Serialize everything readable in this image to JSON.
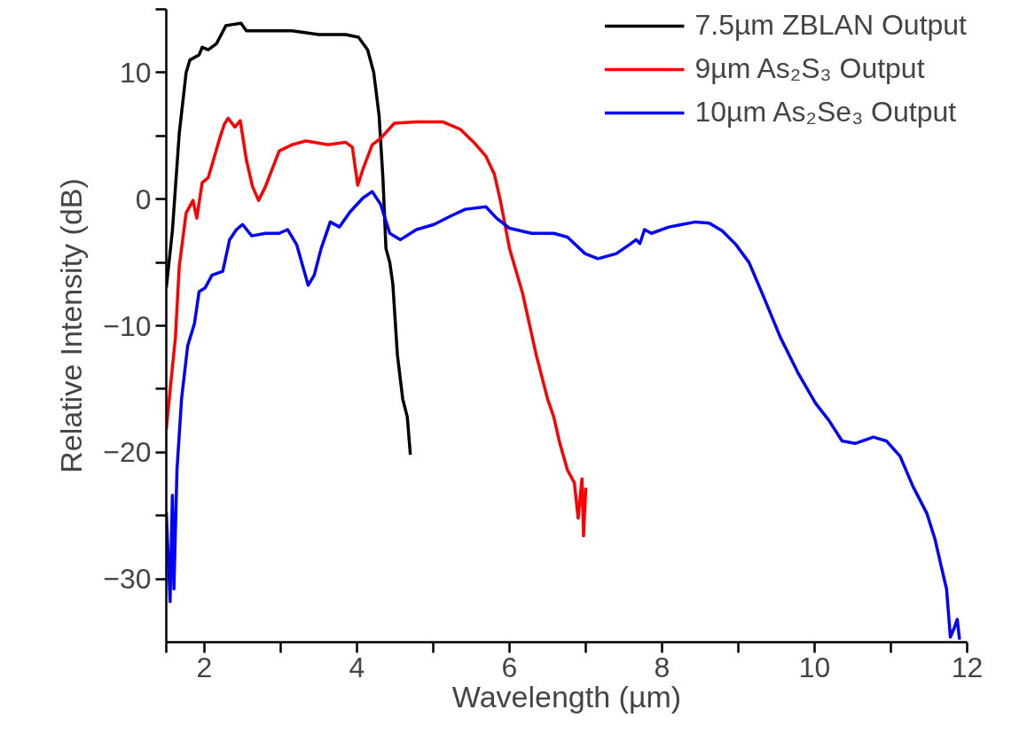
{
  "chart_data": {
    "type": "line",
    "xlabel": "Wavelength (µm)",
    "ylabel": "Relative Intensity (dB)",
    "xlim": [
      1.5,
      12
    ],
    "ylim": [
      -35,
      15
    ],
    "xticks": [
      {
        "value": 1.5,
        "label": null
      },
      2,
      {
        "value": 3,
        "label": null
      },
      4,
      {
        "value": 5,
        "label": null
      },
      6,
      {
        "value": 7,
        "label": null
      },
      8,
      {
        "value": 9,
        "label": null
      },
      10,
      {
        "value": 11,
        "label": null
      },
      12
    ],
    "yticks": [
      -30,
      {
        "value": -25,
        "label": null
      },
      -20,
      {
        "value": -15,
        "label": null
      },
      -10,
      {
        "value": -5,
        "label": null
      },
      0,
      {
        "value": 5,
        "label": null
      },
      10,
      {
        "value": 15,
        "label": null
      }
    ],
    "grid": false,
    "legend": "top right",
    "line_style": "solid",
    "marker": "none",
    "series": [
      {
        "name": "7.5µm ZBLAN Output",
        "color": "#000000",
        "x": [
          1.5,
          1.58,
          1.67,
          1.76,
          1.81,
          1.93,
          1.97,
          2.05,
          2.16,
          2.28,
          2.37,
          2.48,
          2.55,
          2.63,
          2.8,
          3.15,
          3.5,
          3.85,
          4.02,
          4.14,
          4.22,
          4.29,
          4.34,
          4.38,
          4.43,
          4.47,
          4.53,
          4.6,
          4.66,
          4.7
        ],
        "values": [
          -7.0,
          -2.5,
          5.2,
          10.0,
          11.0,
          11.4,
          12.0,
          11.8,
          12.3,
          13.7,
          13.8,
          13.9,
          13.3,
          13.3,
          13.3,
          13.3,
          13.0,
          13.0,
          12.8,
          11.8,
          10.0,
          6.6,
          1.7,
          -3.9,
          -5.0,
          -6.7,
          -12.3,
          -15.8,
          -17.2,
          -20.2
        ]
      },
      {
        "name": "9µm As₂S₃ Output",
        "color": "#ff0000",
        "x": [
          1.5,
          1.55,
          1.62,
          1.67,
          1.76,
          1.85,
          1.9,
          1.97,
          2.05,
          2.2,
          2.26,
          2.31,
          2.4,
          2.47,
          2.55,
          2.63,
          2.71,
          2.8,
          2.98,
          3.15,
          3.33,
          3.62,
          3.85,
          3.94,
          4.01,
          4.08,
          4.2,
          4.31,
          4.49,
          4.78,
          5.13,
          5.36,
          5.53,
          5.69,
          5.8,
          5.88,
          6.0,
          6.17,
          6.35,
          6.5,
          6.58,
          6.66,
          6.76,
          6.85,
          6.9,
          6.95,
          6.97,
          7.0
        ],
        "values": [
          -18.2,
          -15.1,
          -10.9,
          -5.3,
          -1.1,
          -0.1,
          -1.5,
          1.3,
          1.7,
          4.8,
          5.9,
          6.4,
          5.7,
          6.2,
          3.1,
          1.0,
          -0.1,
          1.0,
          3.8,
          4.3,
          4.6,
          4.3,
          4.5,
          4.1,
          1.1,
          2.4,
          4.3,
          4.8,
          6.0,
          6.1,
          6.1,
          5.5,
          4.5,
          3.4,
          2.0,
          -0.1,
          -3.9,
          -7.4,
          -12.3,
          -15.8,
          -17.2,
          -19.3,
          -21.4,
          -22.4,
          -25.2,
          -22.1,
          -26.6,
          -22.8
        ]
      },
      {
        "name": "10µm As₂Se₃ Output",
        "color": "#0000ff",
        "x": [
          1.5,
          1.55,
          1.58,
          1.6,
          1.64,
          1.7,
          1.78,
          1.87,
          1.93,
          2.01,
          2.1,
          2.24,
          2.33,
          2.42,
          2.5,
          2.62,
          2.8,
          2.98,
          3.09,
          3.21,
          3.36,
          3.44,
          3.53,
          3.65,
          3.77,
          3.91,
          4.08,
          4.2,
          4.31,
          4.43,
          4.57,
          4.78,
          5.01,
          5.24,
          5.42,
          5.69,
          5.83,
          6.0,
          6.29,
          6.58,
          6.76,
          6.99,
          7.16,
          7.4,
          7.57,
          7.66,
          7.71,
          7.77,
          7.86,
          8.09,
          8.44,
          8.62,
          8.79,
          8.97,
          9.14,
          9.31,
          9.55,
          9.78,
          10.01,
          10.19,
          10.36,
          10.53,
          10.77,
          10.94,
          11.12,
          11.29,
          11.47,
          11.58,
          11.66,
          11.73,
          11.78,
          11.83,
          11.87,
          11.9
        ],
        "values": [
          -24.7,
          -31.8,
          -23.4,
          -30.8,
          -21.4,
          -15.8,
          -11.6,
          -9.8,
          -7.3,
          -7.0,
          -6.0,
          -5.7,
          -3.2,
          -2.4,
          -2.0,
          -2.9,
          -2.7,
          -2.7,
          -2.4,
          -3.6,
          -6.8,
          -6.0,
          -3.9,
          -1.8,
          -2.2,
          -1.0,
          0.1,
          0.6,
          -0.4,
          -2.7,
          -3.2,
          -2.4,
          -2.0,
          -1.3,
          -0.8,
          -0.6,
          -1.5,
          -2.3,
          -2.7,
          -2.7,
          -3.0,
          -4.3,
          -4.7,
          -4.3,
          -3.6,
          -3.2,
          -3.5,
          -2.4,
          -2.7,
          -2.2,
          -1.8,
          -1.9,
          -2.5,
          -3.6,
          -5.0,
          -7.4,
          -10.9,
          -13.7,
          -16.1,
          -17.5,
          -19.1,
          -19.3,
          -18.8,
          -19.1,
          -20.3,
          -22.7,
          -24.8,
          -26.9,
          -29.0,
          -30.8,
          -34.6,
          -33.9,
          -33.2,
          -34.8
        ]
      }
    ]
  }
}
